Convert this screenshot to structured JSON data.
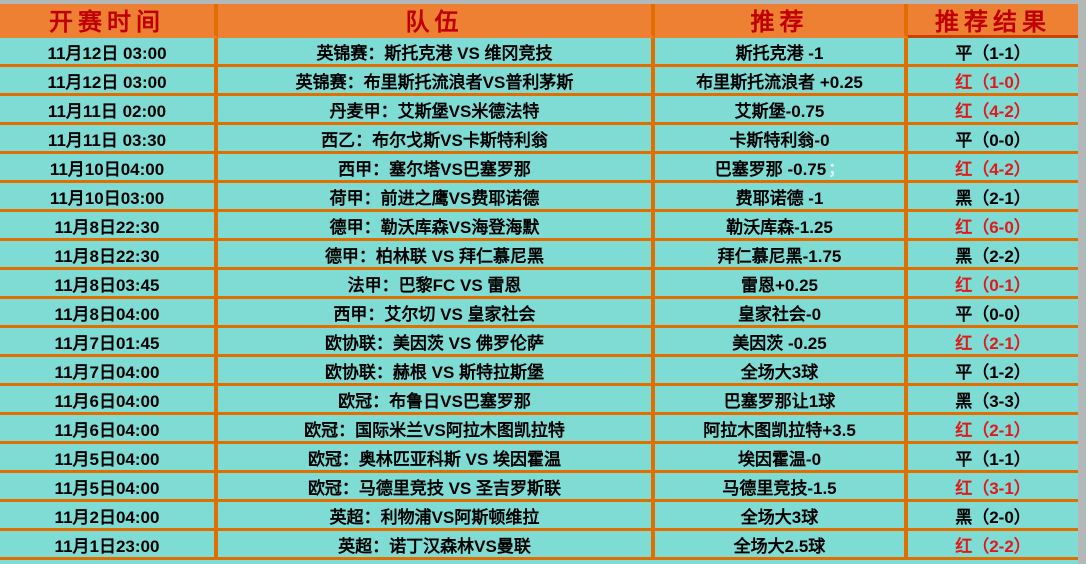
{
  "colors": {
    "header_bg": "#ED8033",
    "header_text": "#C00000",
    "row_bg": "#7EDCD5",
    "grid_line": "#E06F00",
    "header_underline": "#C84300",
    "result_win_text": "#E01A1A",
    "result_other_text": "#000000",
    "edge_strip": "#B3B9B9"
  },
  "table": {
    "headers": [
      "开赛时间",
      "队伍",
      "推荐",
      "推荐结果"
    ],
    "rows": [
      {
        "time": "11月12日 03:00",
        "teams": "英锦赛：斯托克港 VS 维冈竞技",
        "tip": "斯托克港 -1",
        "result": "平（1-1）",
        "result_color": "black"
      },
      {
        "time": "11月12日 03:00",
        "teams": "英锦赛：布里斯托流浪者VS普利茅斯",
        "tip": "布里斯托流浪者 +0.25",
        "result": "红（1-0）",
        "result_color": "red"
      },
      {
        "time": "11月11日 02:00",
        "teams": "丹麦甲：艾斯堡VS米德法特",
        "tip": "艾斯堡-0.75",
        "result": "红（4-2）",
        "result_color": "red"
      },
      {
        "time": "11月11日 03:30",
        "teams": "西乙：布尔戈斯VS卡斯特利翁",
        "tip": "卡斯特利翁-0",
        "result": "平（0-0）",
        "result_color": "black"
      },
      {
        "time": "11月10日04:00",
        "teams": "西甲：塞尔塔VS巴塞罗那",
        "tip": "巴塞罗那 -0.75",
        "note": "；",
        "result": "红（4-2）",
        "result_color": "red"
      },
      {
        "time": "11月10日03:00",
        "teams": "荷甲：前进之鹰VS费耶诺德",
        "tip": "费耶诺德 -1",
        "result": "黑（2-1）",
        "result_color": "black"
      },
      {
        "time": "11月8日22:30",
        "teams": "德甲：勒沃库森VS海登海默",
        "tip": "勒沃库森-1.25",
        "result": "红（6-0）",
        "result_color": "red"
      },
      {
        "time": "11月8日22:30",
        "teams": "德甲：柏林联 VS 拜仁慕尼黑",
        "tip": "拜仁慕尼黑-1.75",
        "result": "黑（2-2）",
        "result_color": "black"
      },
      {
        "time": "11月8日03:45",
        "teams": "法甲：巴黎FC VS 雷恩",
        "tip": "雷恩+0.25",
        "result": "红（0-1）",
        "result_color": "red"
      },
      {
        "time": "11月8日04:00",
        "teams": "西甲：艾尔切 VS 皇家社会",
        "tip": "皇家社会-0",
        "result": "平（0-0）",
        "result_color": "black"
      },
      {
        "time": "11月7日01:45",
        "teams": "欧协联：美因茨 VS 佛罗伦萨",
        "tip": "美因茨 -0.25",
        "result": "红（2-1）",
        "result_color": "red"
      },
      {
        "time": "11月7日04:00",
        "teams": "欧协联：赫根 VS 斯特拉斯堡",
        "tip": "全场大3球",
        "result": "平（1-2）",
        "result_color": "black"
      },
      {
        "time": "11月6日04:00",
        "teams": "欧冠：布鲁日VS巴塞罗那",
        "tip": "巴塞罗那让1球",
        "result": "黑（3-3）",
        "result_color": "black"
      },
      {
        "time": "11月6日04:00",
        "teams": "欧冠：国际米兰VS阿拉木图凯拉特",
        "tip": "阿拉木图凯拉特+3.5",
        "result": "红（2-1）",
        "result_color": "red"
      },
      {
        "time": "11月5日04:00",
        "teams": "欧冠：奥林匹亚科斯 VS 埃因霍温",
        "tip": "埃因霍温-0",
        "result": "平（1-1）",
        "result_color": "black"
      },
      {
        "time": "11月5日04:00",
        "teams": "欧冠：马德里竞技 VS 圣吉罗斯联",
        "tip": "马德里竞技-1.5",
        "result": "红（3-1）",
        "result_color": "red"
      },
      {
        "time": "11月2日04:00",
        "teams": "英超：利物浦VS阿斯顿维拉",
        "tip": "全场大3球",
        "result": "黑（2-0）",
        "result_color": "black"
      },
      {
        "time": "11月1日23:00",
        "teams": "英超：诺丁汉森林VS曼联",
        "tip": "全场大2.5球",
        "result": "红（2-2）",
        "result_color": "red"
      }
    ]
  }
}
